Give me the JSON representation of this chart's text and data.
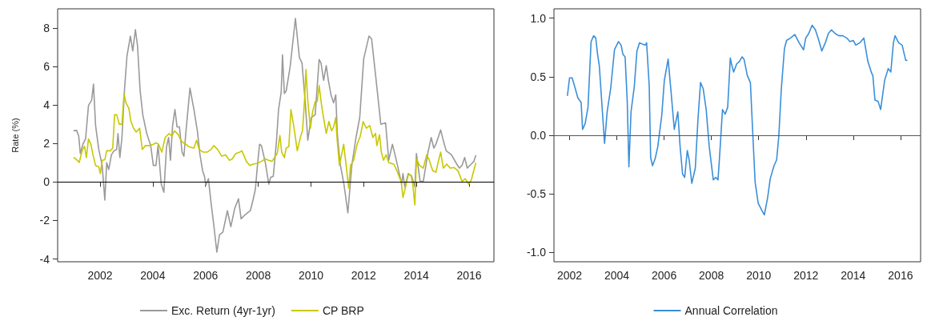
{
  "chart_data": [
    {
      "type": "line",
      "ylabel": "Rate (%)",
      "xlim": [
        2000.39,
        2016.94
      ],
      "xticks": [
        2002,
        2004,
        2006,
        2008,
        2010,
        2012,
        2014,
        2016
      ],
      "ylim": [
        -4.14,
        8.99
      ],
      "yticks": [
        -4,
        -2,
        0,
        2,
        4,
        6,
        8
      ],
      "grid": false,
      "legend": "bottom",
      "marker": "none",
      "line_style": "solid",
      "ref_lines": [
        {
          "axis": "y",
          "value": 0,
          "color": "#000000"
        }
      ],
      "series": [
        {
          "name": "Exc. Return (4yr-1yr)",
          "color": "#9a9a9a",
          "x": [
            2001.01,
            2001.11,
            2001.19,
            2001.25,
            2001.35,
            2001.45,
            2001.56,
            2001.68,
            2001.75,
            2001.83,
            2001.95,
            2002.08,
            2002.18,
            2002.25,
            2002.33,
            2002.43,
            2002.53,
            2002.63,
            2002.68,
            2002.75,
            2002.83,
            2002.93,
            2003.02,
            2003.15,
            2003.24,
            2003.34,
            2003.42,
            2003.52,
            2003.62,
            2003.77,
            2003.92,
            2004.02,
            2004.12,
            2004.2,
            2004.32,
            2004.42,
            2004.52,
            2004.6,
            2004.67,
            2004.75,
            2004.84,
            2004.92,
            2005.01,
            2005.11,
            2005.18,
            2005.26,
            2005.41,
            2005.56,
            2005.69,
            2005.79,
            2005.89,
            2005.96,
            2006.01,
            2006.11,
            2006.21,
            2006.31,
            2006.43,
            2006.53,
            2006.66,
            2006.83,
            2006.96,
            2007.11,
            2007.25,
            2007.35,
            2007.5,
            2007.7,
            2007.8,
            2007.89,
            2007.97,
            2008.05,
            2008.12,
            2008.27,
            2008.4,
            2008.47,
            2008.57,
            2008.69,
            2008.77,
            2008.87,
            2008.92,
            2008.99,
            2009.06,
            2009.21,
            2009.41,
            2009.56,
            2009.66,
            2009.78,
            2009.88,
            2010.01,
            2010.16,
            2010.31,
            2010.38,
            2010.48,
            2010.58,
            2010.66,
            2010.76,
            2010.86,
            2010.94,
            2011.0,
            2011.1,
            2011.25,
            2011.4,
            2011.55,
            2011.7,
            2011.85,
            2012.0,
            2012.2,
            2012.3,
            2012.45,
            2012.65,
            2012.83,
            2012.95,
            2013.09,
            2013.19,
            2013.34,
            2013.44,
            2013.49,
            2013.56,
            2013.69,
            2013.82,
            2013.94,
            2014.0,
            2014.14,
            2014.26,
            2014.36,
            2014.44,
            2014.56,
            2014.66,
            2014.74,
            2014.92,
            2015.03,
            2015.13,
            2015.33,
            2015.53,
            2015.63,
            2015.73,
            2015.83,
            2015.93,
            2016.08,
            2016.18,
            2016.25
          ],
          "values": [
            2.66,
            2.68,
            2.38,
            1.48,
            1.96,
            2.24,
            3.97,
            4.25,
            5.08,
            2.93,
            1.69,
            0.86,
            -0.94,
            1.0,
            0.65,
            1.41,
            1.62,
            1.69,
            2.52,
            1.27,
            2.31,
            4.87,
            6.53,
            7.57,
            6.8,
            7.91,
            7.08,
            4.73,
            3.49,
            2.52,
            1.89,
            0.86,
            0.86,
            1.89,
            -0.11,
            -0.53,
            1.83,
            2.31,
            1.13,
            2.93,
            3.76,
            2.86,
            2.86,
            1.55,
            1.34,
            2.66,
            4.87,
            3.76,
            2.66,
            1.41,
            0.58,
            0.3,
            -0.18,
            0.17,
            -1.08,
            -2.19,
            -3.64,
            -2.74,
            -2.6,
            -1.49,
            -2.32,
            -1.36,
            -0.87,
            -1.91,
            -1.7,
            -1.49,
            -0.94,
            -0.39,
            0.86,
            1.96,
            1.89,
            1.0,
            -0.11,
            0.24,
            0.3,
            2.1,
            3.76,
            4.66,
            6.6,
            4.59,
            4.73,
            5.98,
            8.49,
            6.46,
            6.18,
            4.18,
            2.17,
            3.35,
            3.49,
            6.36,
            6.18,
            5.28,
            6.04,
            5.28,
            4.52,
            4.11,
            4.52,
            2.52,
            1.0,
            -0.11,
            -1.6,
            0.86,
            2.24,
            3.35,
            6.39,
            7.57,
            7.43,
            5.56,
            3.0,
            3.07,
            1.13,
            1.96,
            1.41,
            0.51,
            -0.11,
            0.44,
            -0.25,
            0.44,
            0.3,
            -0.25,
            1.48,
            0.03,
            0.03,
            0.86,
            1.55,
            2.31,
            1.76,
            1.96,
            2.7,
            2.1,
            1.62,
            1.41,
            0.93,
            0.72,
            0.86,
            1.27,
            0.72,
            0.93,
            1.07,
            1.37
          ]
        },
        {
          "name": "CP BRP",
          "color": "#c8c800",
          "x": [
            2001.01,
            2001.13,
            2001.21,
            2001.33,
            2001.41,
            2001.48,
            2001.56,
            2001.65,
            2001.73,
            2001.83,
            2001.95,
            2002.01,
            2002.08,
            2002.18,
            2002.25,
            2002.38,
            2002.48,
            2002.55,
            2002.63,
            2002.73,
            2002.83,
            2002.91,
            2002.98,
            2003.09,
            2003.17,
            2003.27,
            2003.37,
            2003.5,
            2003.6,
            2003.72,
            2003.87,
            2004.02,
            2004.12,
            2004.22,
            2004.34,
            2004.47,
            2004.62,
            2004.72,
            2004.82,
            2004.97,
            2005.06,
            2005.16,
            2005.26,
            2005.36,
            2005.56,
            2005.66,
            2005.76,
            2005.91,
            2006.06,
            2006.21,
            2006.31,
            2006.46,
            2006.61,
            2006.76,
            2006.91,
            2007.01,
            2007.15,
            2007.3,
            2007.38,
            2007.55,
            2007.68,
            2007.8,
            2007.97,
            2008.12,
            2008.27,
            2008.39,
            2008.52,
            2008.65,
            2008.72,
            2008.82,
            2008.89,
            2008.99,
            2009.06,
            2009.16,
            2009.24,
            2009.36,
            2009.48,
            2009.61,
            2009.68,
            2009.76,
            2009.81,
            2009.88,
            2009.98,
            2010.06,
            2010.16,
            2010.24,
            2010.31,
            2010.41,
            2010.51,
            2010.58,
            2010.68,
            2010.78,
            2010.86,
            2010.94,
            2010.99,
            2011.08,
            2011.16,
            2011.24,
            2011.34,
            2011.43,
            2011.5,
            2011.62,
            2011.75,
            2011.87,
            2011.98,
            2012.1,
            2012.23,
            2012.35,
            2012.45,
            2012.5,
            2012.6,
            2012.67,
            2012.75,
            2012.85,
            2012.95,
            2013.14,
            2013.26,
            2013.34,
            2013.42,
            2013.49,
            2013.59,
            2013.69,
            2013.79,
            2013.86,
            2013.94,
            2014.0,
            2014.12,
            2014.26,
            2014.39,
            2014.49,
            2014.62,
            2014.74,
            2014.82,
            2014.92,
            2015.02,
            2015.15,
            2015.28,
            2015.43,
            2015.58,
            2015.73,
            2015.85,
            2015.98,
            2016.08,
            2016.25
          ],
          "values": [
            1.27,
            1.13,
            1.02,
            1.69,
            1.85,
            1.27,
            2.24,
            1.96,
            1.41,
            0.86,
            0.79,
            0.44,
            1.13,
            1.16,
            1.62,
            1.62,
            1.76,
            3.49,
            3.49,
            3.0,
            3.0,
            4.59,
            4.11,
            3.83,
            3.14,
            2.79,
            2.59,
            2.79,
            1.69,
            1.89,
            1.89,
            1.96,
            2.03,
            1.96,
            1.55,
            2.31,
            2.52,
            2.38,
            2.66,
            2.45,
            2.17,
            2.03,
            1.96,
            1.83,
            1.76,
            2.17,
            1.69,
            1.55,
            1.55,
            1.69,
            1.89,
            1.69,
            1.34,
            1.41,
            1.13,
            1.2,
            1.48,
            1.55,
            1.62,
            1.07,
            0.86,
            0.93,
            0.97,
            1.07,
            1.2,
            1.13,
            1.07,
            1.34,
            1.48,
            2.41,
            1.55,
            1.27,
            1.76,
            1.83,
            3.76,
            2.79,
            1.62,
            2.38,
            2.66,
            4.32,
            5.84,
            4.18,
            2.79,
            3.62,
            4.18,
            4.18,
            5.01,
            3.9,
            3.07,
            2.52,
            3.14,
            2.66,
            2.86,
            3.35,
            2.24,
            0.86,
            1.41,
            1.96,
            0.79,
            -0.32,
            0.86,
            1.13,
            1.96,
            2.38,
            3.14,
            2.79,
            2.93,
            2.31,
            2.52,
            1.89,
            2.45,
            1.55,
            1.13,
            1.41,
            1.0,
            0.93,
            0.58,
            0.3,
            0.03,
            -0.8,
            -0.25,
            0.37,
            0.37,
            -0.11,
            -1.19,
            1.2,
            0.86,
            0.72,
            1.41,
            1.13,
            0.58,
            0.51,
            1.0,
            1.55,
            0.72,
            0.93,
            0.72,
            0.75,
            0.58,
            0.03,
            0.17,
            -0.11,
            0.1,
            0.97
          ]
        }
      ]
    },
    {
      "type": "line",
      "xlim": [
        2001.34,
        2016.85
      ],
      "xticks": [
        2002,
        2004,
        2006,
        2008,
        2010,
        2012,
        2014,
        2016
      ],
      "ylim": [
        -1.08,
        1.08
      ],
      "yticks": [
        {
          "value": -1,
          "label": "-1.0"
        },
        {
          "value": -0.5,
          "label": "-0.5"
        },
        {
          "value": 0,
          "label": "0.0"
        },
        {
          "value": 0.5,
          "label": "0.5"
        },
        {
          "value": 1,
          "label": "1.0"
        }
      ],
      "grid": false,
      "legend": "bottom",
      "marker": "none",
      "line_style": "solid",
      "ref_lines": [
        {
          "axis": "y",
          "value": 0,
          "color": "#555555"
        }
      ],
      "series": [
        {
          "name": "Annual Correlation",
          "color": "#3a8fd9",
          "x": [
            2001.91,
            2002.0,
            2002.11,
            2002.24,
            2002.35,
            2002.49,
            2002.55,
            2002.66,
            2002.78,
            2002.91,
            2003.02,
            2003.11,
            2003.18,
            2003.26,
            2003.37,
            2003.48,
            2003.59,
            2003.74,
            2003.9,
            2004.07,
            2004.18,
            2004.26,
            2004.35,
            2004.44,
            2004.51,
            2004.6,
            2004.74,
            2004.85,
            2004.96,
            2005.07,
            2005.2,
            2005.26,
            2005.37,
            2005.43,
            2005.51,
            2005.62,
            2005.73,
            2005.9,
            2006.01,
            2006.17,
            2006.29,
            2006.43,
            2006.58,
            2006.67,
            2006.78,
            2006.87,
            2006.98,
            2007.06,
            2007.17,
            2007.32,
            2007.43,
            2007.54,
            2007.65,
            2007.78,
            2007.91,
            2008.08,
            2008.19,
            2008.28,
            2008.35,
            2008.47,
            2008.58,
            2008.69,
            2008.8,
            2008.85,
            2008.94,
            2009.07,
            2009.18,
            2009.3,
            2009.38,
            2009.52,
            2009.65,
            2009.74,
            2009.85,
            2009.98,
            2010.13,
            2010.24,
            2010.38,
            2010.49,
            2010.65,
            2010.76,
            2010.85,
            2010.96,
            2011.09,
            2011.18,
            2011.34,
            2011.53,
            2011.71,
            2011.9,
            2011.99,
            2012.12,
            2012.26,
            2012.4,
            2012.53,
            2012.67,
            2012.82,
            2012.95,
            2013.08,
            2013.23,
            2013.39,
            2013.56,
            2013.73,
            2013.86,
            2014.0,
            2014.11,
            2014.28,
            2014.45,
            2014.62,
            2014.78,
            2014.83,
            2014.92,
            2015.05,
            2015.16,
            2015.33,
            2015.48,
            2015.59,
            2015.7,
            2015.77,
            2015.92,
            2016.07,
            2016.22,
            2016.27
          ],
          "values": [
            0.34,
            0.49,
            0.49,
            0.4,
            0.32,
            0.28,
            0.05,
            0.1,
            0.24,
            0.8,
            0.85,
            0.83,
            0.7,
            0.59,
            0.26,
            -0.07,
            0.2,
            0.4,
            0.73,
            0.8,
            0.77,
            0.69,
            0.67,
            0.29,
            -0.27,
            0.2,
            0.42,
            0.72,
            0.79,
            0.78,
            0.77,
            0.79,
            0.42,
            -0.19,
            -0.26,
            -0.2,
            -0.1,
            0.17,
            0.47,
            0.65,
            0.38,
            0.05,
            0.2,
            -0.08,
            -0.33,
            -0.36,
            -0.13,
            -0.21,
            -0.41,
            -0.28,
            0.13,
            0.45,
            0.4,
            0.22,
            -0.1,
            -0.38,
            -0.36,
            -0.38,
            -0.17,
            0.22,
            0.18,
            0.24,
            0.66,
            0.61,
            0.54,
            0.61,
            0.63,
            0.67,
            0.65,
            0.51,
            0.45,
            0.06,
            -0.4,
            -0.58,
            -0.64,
            -0.68,
            -0.53,
            -0.37,
            -0.26,
            -0.21,
            -0.01,
            0.4,
            0.74,
            0.81,
            0.83,
            0.86,
            0.79,
            0.73,
            0.83,
            0.87,
            0.94,
            0.9,
            0.82,
            0.72,
            0.79,
            0.87,
            0.9,
            0.87,
            0.85,
            0.85,
            0.83,
            0.8,
            0.81,
            0.77,
            0.79,
            0.83,
            0.63,
            0.53,
            0.51,
            0.3,
            0.29,
            0.22,
            0.47,
            0.57,
            0.54,
            0.79,
            0.85,
            0.79,
            0.77,
            0.64,
            0.64
          ]
        }
      ]
    }
  ]
}
